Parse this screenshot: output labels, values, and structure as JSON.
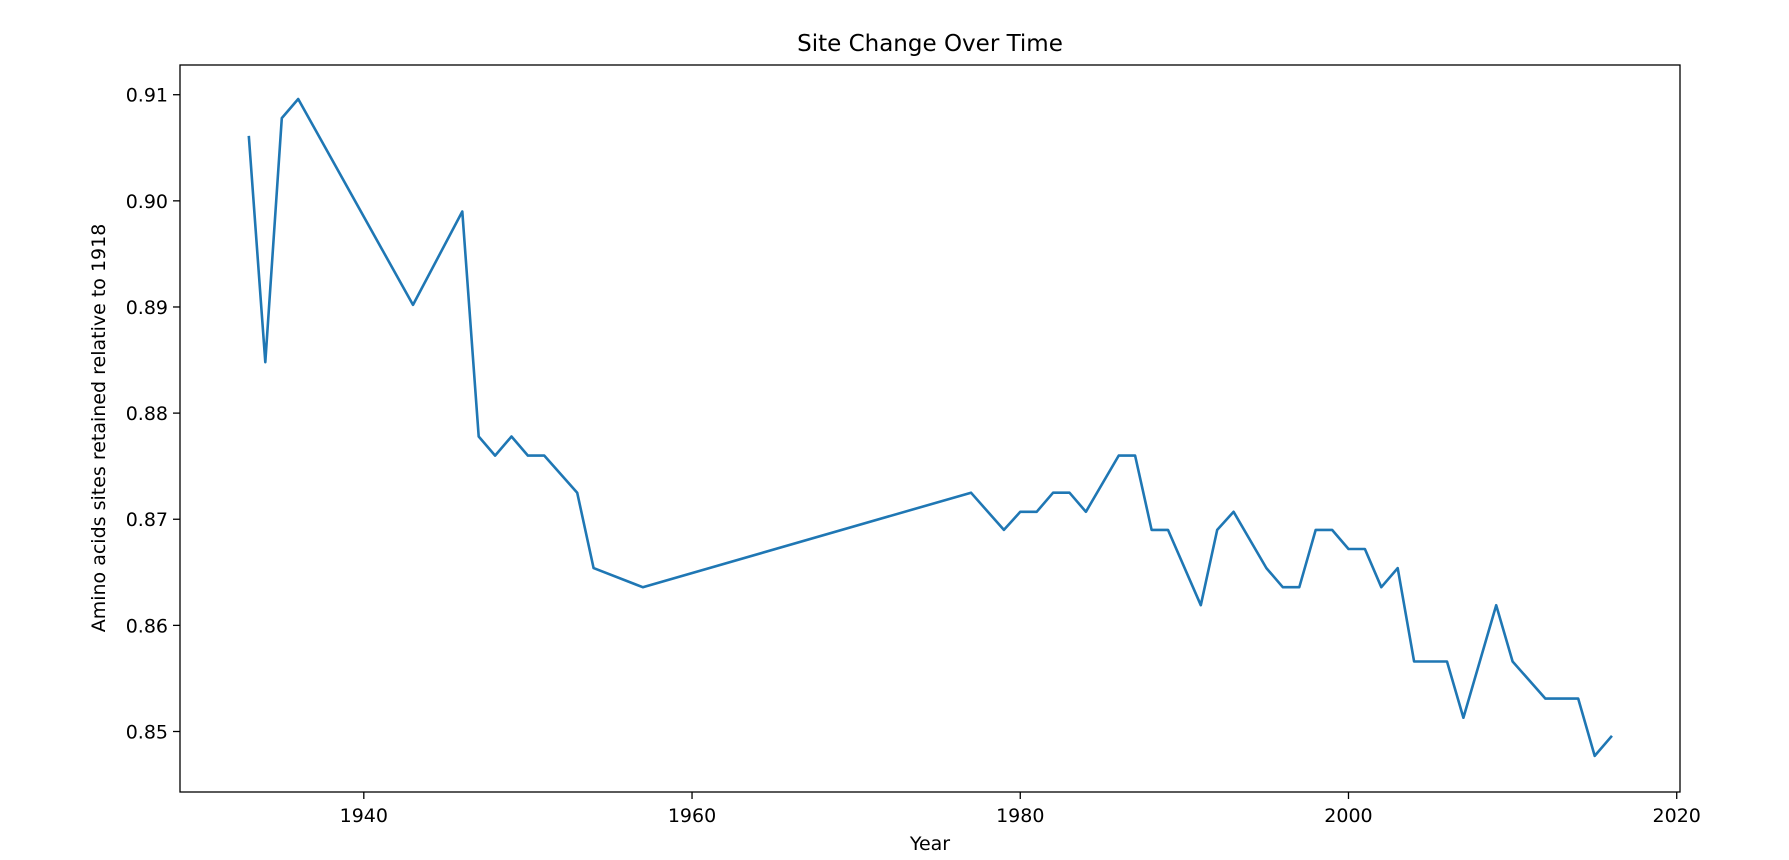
{
  "chart_data": {
    "type": "line",
    "title": "Site Change Over Time",
    "xlabel": "Year",
    "ylabel": "Amino acids sites retained relative to 1918",
    "xlim": [
      1928.8,
      2020.2
    ],
    "ylim": [
      0.8443,
      0.9128
    ],
    "xticks": [
      1940,
      1960,
      1980,
      2000,
      2020
    ],
    "xtick_labels": [
      "1940",
      "1960",
      "1980",
      "2000",
      "2020"
    ],
    "yticks": [
      0.85,
      0.86,
      0.87,
      0.88,
      0.89,
      0.9,
      0.91
    ],
    "ytick_labels": [
      "0.85",
      "0.86",
      "0.87",
      "0.88",
      "0.89",
      "0.90",
      "0.91"
    ],
    "grid": false,
    "series": [
      {
        "color": "#1f77b4",
        "x": [
          1933,
          1934,
          1935,
          1936,
          1943,
          1946,
          1947,
          1948,
          1949,
          1950,
          1951,
          1953,
          1954,
          1957,
          1977,
          1979,
          1980,
          1981,
          1982,
          1983,
          1984,
          1986,
          1987,
          1988,
          1989,
          1991,
          1992,
          1993,
          1995,
          1996,
          1997,
          1998,
          1999,
          2000,
          2001,
          2002,
          2003,
          2004,
          2006,
          2007,
          2009,
          2010,
          2012,
          2014,
          2015,
          2016
        ],
        "y": [
          0.906,
          0.8848,
          0.9078,
          0.9096,
          0.8902,
          0.899,
          0.8778,
          0.876,
          0.8778,
          0.876,
          0.876,
          0.8725,
          0.8654,
          0.8636,
          0.8725,
          0.869,
          0.8707,
          0.8707,
          0.8725,
          0.8725,
          0.8707,
          0.876,
          0.876,
          0.869,
          0.869,
          0.8619,
          0.869,
          0.8707,
          0.8654,
          0.8636,
          0.8636,
          0.869,
          0.869,
          0.8672,
          0.8672,
          0.8636,
          0.8654,
          0.8566,
          0.8566,
          0.8513,
          0.8619,
          0.8566,
          0.8531,
          0.8531,
          0.8477,
          0.8495
        ]
      }
    ]
  }
}
